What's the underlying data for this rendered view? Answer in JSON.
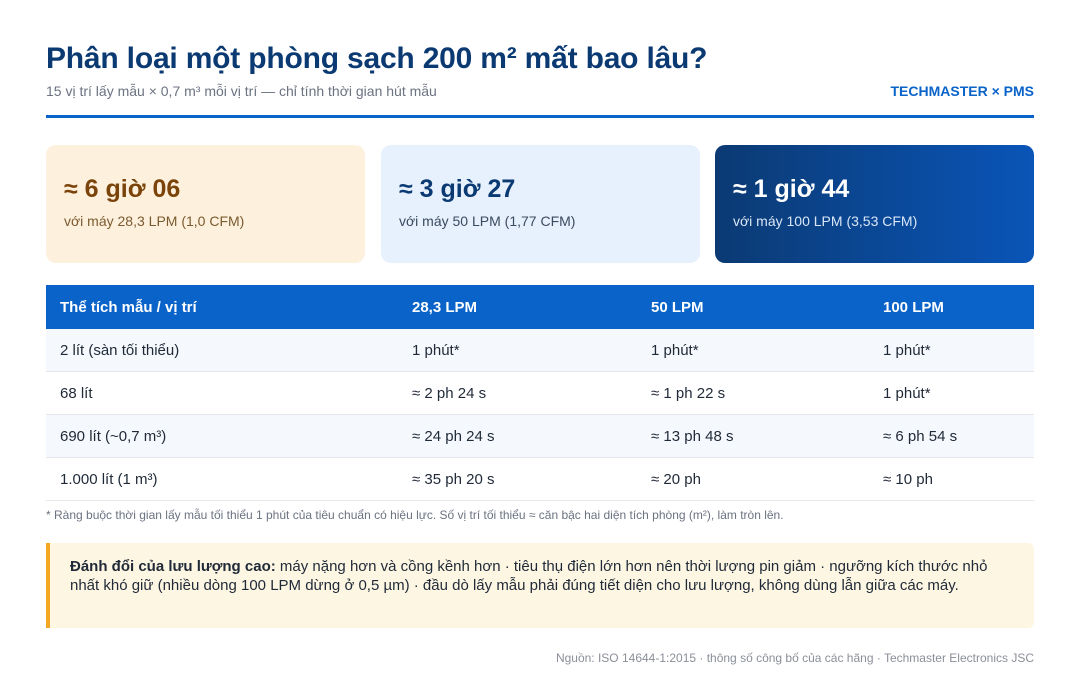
{
  "header": {
    "title": "Phân loại một phòng sạch 200 m² mất bao lâu?",
    "subtitle": "15 vị trí lấy mẫu × 0,7 m³ mỗi vị trí — chỉ tính thời gian hút mẫu",
    "brand": "TECHMASTER × PMS"
  },
  "cards": [
    {
      "value": "≈ 6 giờ 06",
      "caption": "với máy 28,3 LPM (1,0 CFM)"
    },
    {
      "value": "≈ 3 giờ 27",
      "caption": "với máy 50 LPM (1,77 CFM)"
    },
    {
      "value": "≈ 1 giờ 44",
      "caption": "với máy 100 LPM (3,53 CFM)"
    }
  ],
  "table": {
    "headers": [
      "Thể tích mẫu / vị trí",
      "28,3 LPM",
      "50 LPM",
      "100 LPM"
    ],
    "rows": [
      [
        "2 lít (sàn tối thiểu)",
        "1 phút*",
        "1 phút*",
        "1 phút*"
      ],
      [
        "68 lít",
        "≈ 2 ph 24 s",
        "≈ 1 ph 22 s",
        "1 phút*"
      ],
      [
        "690 lít (~0,7 m³)",
        "≈ 24 ph 24 s",
        "≈ 13 ph 48 s",
        "≈ 6 ph 54 s"
      ],
      [
        "1.000 lít (1 m³)",
        "≈ 35 ph 20 s",
        "≈ 20 ph",
        "≈ 10 ph"
      ]
    ]
  },
  "footnote": "* Ràng buộc thời gian lấy mẫu tối thiểu 1 phút của tiêu chuẩn có hiệu lực. Số vị trí tối thiểu ≈ căn bậc hai diện tích phòng (m²), làm tròn lên.",
  "callout": {
    "lead": "Đánh đổi của lưu lượng cao:",
    "text": " máy nặng hơn và cồng kềnh hơn · tiêu thụ điện lớn hơn nên thời lượng pin giảm · ngưỡng kích thước nhỏ nhất khó giữ (nhiều dòng 100 LPM dừng ở 0,5 µm) · đầu dò lấy mẫu phải đúng tiết diện cho lưu lượng, không dùng lẫn giữa các máy."
  },
  "source": "Nguồn: ISO 14644-1:2015 · thông số công bố của các hãng · Techmaster Electronics JSC"
}
